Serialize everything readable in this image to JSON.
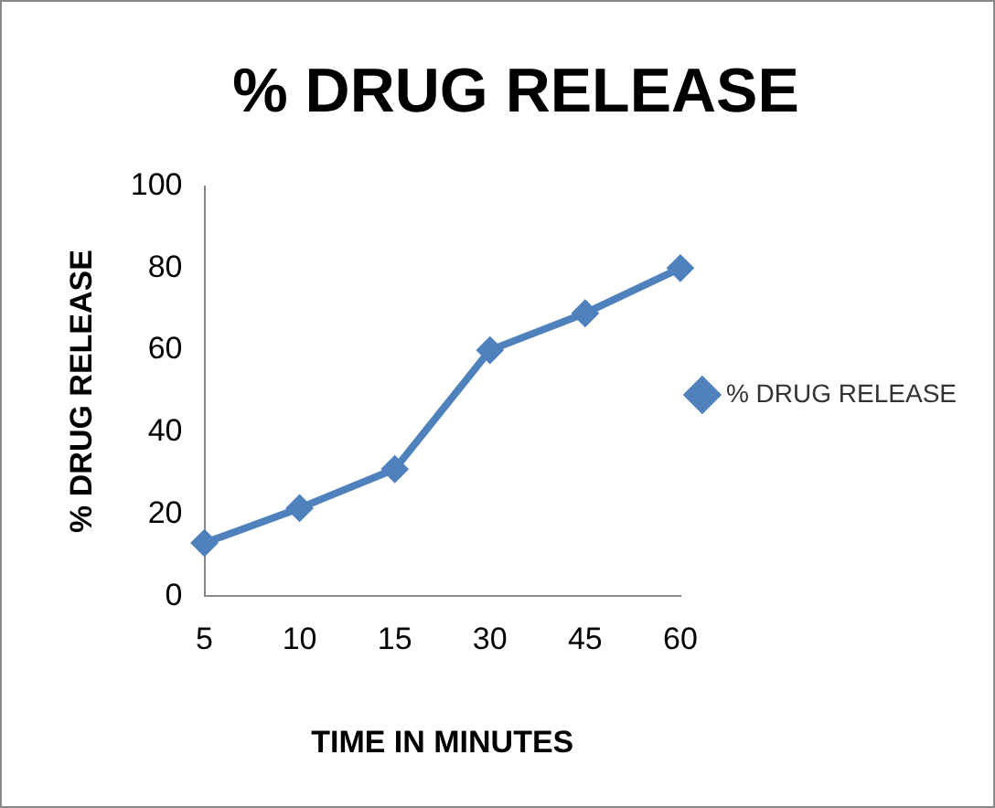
{
  "chart_data": {
    "type": "line",
    "title": "% DRUG RELEASE",
    "xlabel": "TIME IN MINUTES",
    "ylabel": "% DRUG RELEASE",
    "categories": [
      "5",
      "10",
      "15",
      "30",
      "45",
      "60"
    ],
    "series": [
      {
        "name": "% DRUG RELEASE",
        "color": "#4f81bd",
        "values": [
          13,
          21.5,
          31,
          60,
          69,
          80
        ]
      }
    ],
    "ylim": [
      0,
      100
    ],
    "yticks": [
      0,
      20,
      40,
      60,
      80,
      100
    ],
    "grid": false,
    "legend": "right",
    "marker": "diamond",
    "line_style": "solid"
  }
}
